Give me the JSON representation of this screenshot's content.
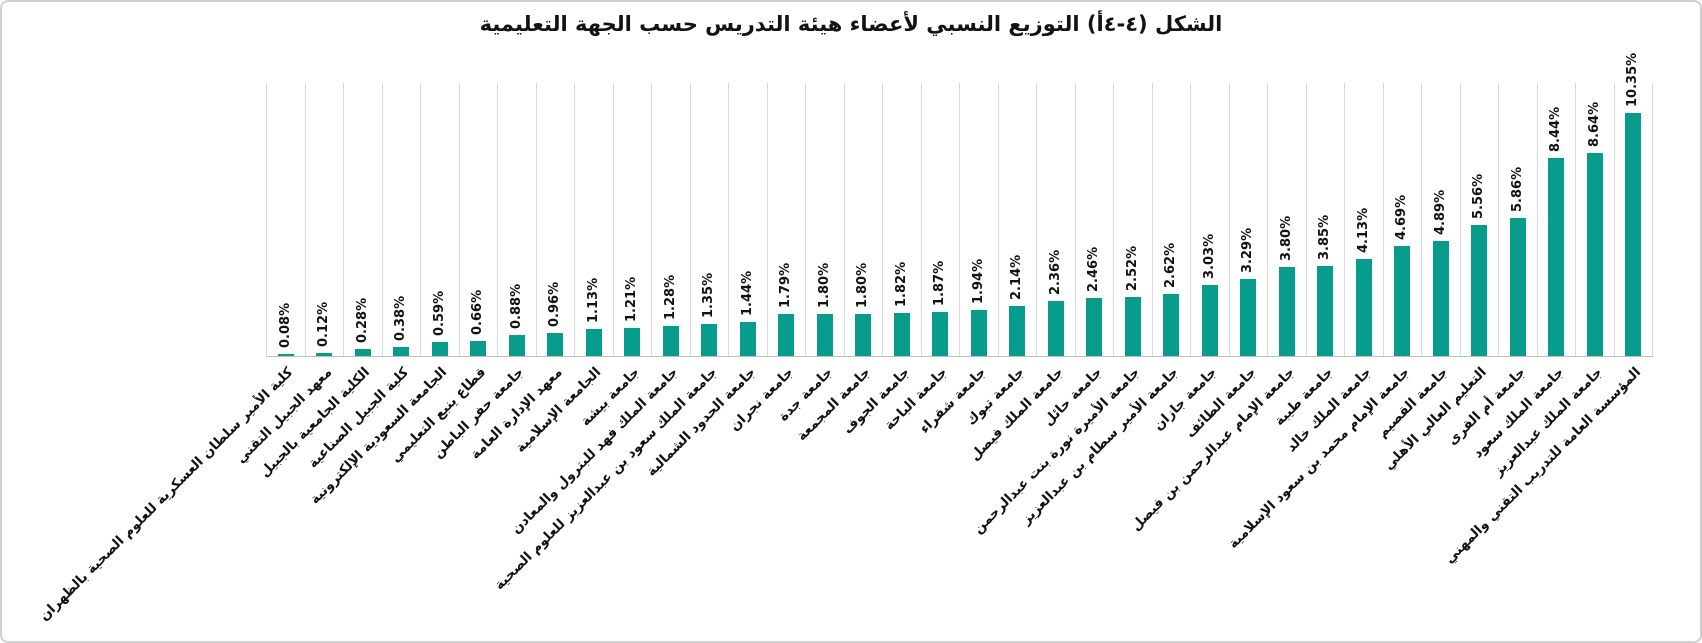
{
  "title": "الشكل (٤-٤أ) التوزيع النسبي لأعضاء هيئة التدريس حسب الجهة التعليمية",
  "colors": {
    "bar": "#089c8d",
    "gridline": "#d9d9d9",
    "axis_line": "#bfbfbf",
    "frame_border": "#d0d0d0",
    "text": "#131313",
    "background": "#ffffff"
  },
  "chart_data": {
    "type": "bar",
    "orientation": "vertical",
    "title": "الشكل (٤-٤أ) التوزيع النسبي لأعضاء هيئة التدريس حسب الجهة التعليمية",
    "xlabel": "",
    "ylabel": "",
    "value_suffix": "%",
    "ylim": [
      0,
      12
    ],
    "grid": "vertical category separators only",
    "legend_position": "none",
    "data_labels": "rotated 90°, above bars, two decimals + %",
    "category_labels": "rotated 45°, Arabic RTL",
    "categories": [
      "كلية الأمير سلطان العسكرية للعلوم الصحية بالظهران",
      "معهد الجبيل التقني",
      "الكلية الجامعية بالجبيل",
      "كلية الجبيل الصناعية",
      "الجامعة السعودية الإلكترونية",
      "قطاع ينبع التعليمي",
      "جامعة حفر الباطن",
      "معهد الإدارة العامة",
      "الجامعة الإسلامية",
      "جامعة بيشة",
      "جامعة الملك فهد للبترول والمعادن",
      "جامعة الملك سعود بن عبدالعزيز للعلوم الصحية",
      "جامعة الحدود الشمالية",
      "جامعة نجران",
      "جامعة جدة",
      "جامعة المجمعة",
      "جامعة الجوف",
      "جامعة الباحة",
      "جامعة شقراء",
      "جامعة تبوك",
      "جامعة الملك فيصل",
      "جامعة حائل",
      "جامعة الأميرة نورة بنت عبدالرحمن",
      "جامعة الأمير سطام بن عبدالعزيز",
      "جامعة جازان",
      "جامعة الطائف",
      "جامعة الإمام عبدالرحمن بن فيصل",
      "جامعة طيبة",
      "جامعة الملك خالد",
      "جامعة الإمام محمد بن سعود الإسلامية",
      "جامعة القصيم",
      "التعليم العالي الأهلي",
      "جامعة أم القرى",
      "جامعة الملك سعود",
      "جامعة الملك عبدالعزيز",
      "المؤسسة العامة للتدريب التقني والمهني"
    ],
    "values": [
      0.08,
      0.12,
      0.28,
      0.38,
      0.59,
      0.66,
      0.88,
      0.96,
      1.13,
      1.21,
      1.28,
      1.35,
      1.44,
      1.79,
      1.8,
      1.8,
      1.82,
      1.87,
      1.94,
      2.14,
      2.36,
      2.46,
      2.52,
      2.62,
      3.03,
      3.29,
      3.8,
      3.85,
      4.13,
      4.69,
      4.89,
      5.56,
      5.86,
      8.44,
      8.64,
      10.35
    ]
  }
}
